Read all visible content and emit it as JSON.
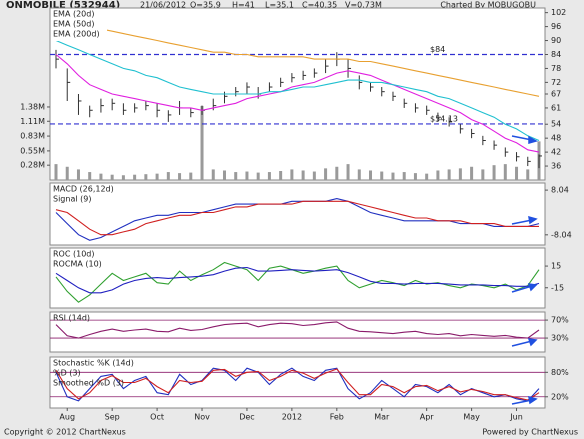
{
  "header": {
    "title": "ONMOBILE (532944)",
    "date": "21/06/2012",
    "quote": [
      "O=35.9",
      "H=41",
      "L=35.1",
      "C=40.35",
      "V=0.73M"
    ],
    "credit": "Charted By MOBUGOBU"
  },
  "footer": {
    "copyright": "Copyright © 2012 ChartNexus",
    "powered": "Powered by ChartNexus"
  },
  "chart_data": [
    {
      "type": "ohlc",
      "color": "#303030",
      "high": [
        86,
        78,
        67,
        62,
        65,
        65,
        63,
        63,
        64,
        63,
        60,
        64,
        61,
        62,
        65,
        68,
        70,
        72,
        70,
        72,
        74,
        76,
        77,
        78,
        82,
        85,
        82,
        75,
        72,
        70,
        68,
        65,
        63,
        62,
        59,
        57,
        54,
        52,
        49,
        47,
        44,
        42,
        40,
        41
      ],
      "low": [
        78,
        64,
        58,
        57,
        59,
        60,
        58,
        59,
        60,
        57,
        55,
        58,
        57,
        58,
        60,
        63,
        66,
        67,
        65,
        68,
        70,
        72,
        73,
        74,
        76,
        79,
        74,
        69,
        68,
        66,
        64,
        61,
        59,
        58,
        55,
        53,
        50,
        48,
        45,
        43,
        40,
        38,
        36,
        35.1
      ],
      "close": [
        82,
        72,
        64,
        60,
        62,
        63,
        60,
        61,
        62,
        60,
        58,
        61,
        59,
        60,
        62,
        66,
        68,
        70,
        67,
        70,
        72,
        74,
        75,
        76,
        79,
        82,
        78,
        72,
        70,
        68,
        66,
        63,
        61,
        60,
        57,
        55,
        52,
        50,
        47,
        45,
        42,
        40,
        38,
        40.35
      ],
      "volume": [
        300000,
        250000,
        200000,
        150000,
        120000,
        100000,
        90000,
        100000,
        110000,
        120000,
        150000,
        130000,
        140000,
        1400000,
        200000,
        180000,
        150000,
        160000,
        140000,
        150000,
        170000,
        200000,
        180000,
        160000,
        220000,
        250000,
        300000,
        200000,
        180000,
        160000,
        140000,
        150000,
        130000,
        120000,
        180000,
        200000,
        220000,
        250000,
        200000,
        280000,
        300000,
        250000,
        200000,
        730000
      ],
      "volume_color": "#9a9a9a",
      "ylim": [
        30,
        104
      ],
      "yticks": [
        36,
        42,
        48,
        54,
        61,
        67,
        72,
        78,
        84,
        90,
        96,
        102
      ],
      "y2lim": [
        0,
        3250000
      ],
      "y2ticks": [
        {
          "value": 280000,
          "label": "0.28M"
        },
        {
          "value": 550000,
          "label": "0.55M"
        },
        {
          "value": 830000,
          "label": "0.83M"
        },
        {
          "value": 1110000,
          "label": "1.11M"
        },
        {
          "value": 1380000,
          "label": "1.38M"
        }
      ],
      "levels": [
        {
          "value": 84,
          "label": "$84"
        },
        {
          "value": 54.13,
          "label": "$54.13"
        }
      ],
      "level_color": "#3030d0",
      "series": [
        {
          "name": "EMA (20d)",
          "color": "#e020e0",
          "values": [
            84,
            80,
            75,
            71,
            69,
            67,
            66,
            65,
            64,
            63,
            62,
            61,
            61,
            60,
            61,
            62,
            63,
            65,
            66,
            67,
            68,
            70,
            71,
            72,
            74,
            76,
            77,
            76,
            75,
            73,
            71,
            69,
            67,
            65,
            63,
            61,
            59,
            56,
            54,
            51,
            48,
            46,
            43,
            42
          ]
        },
        {
          "name": "EMA (50d)",
          "color": "#20c0d0",
          "values": [
            90,
            88,
            86,
            84,
            82,
            80,
            78,
            77,
            75,
            74,
            72,
            70,
            69,
            68,
            67,
            67,
            67,
            67,
            67,
            68,
            68,
            69,
            70,
            70,
            71,
            72,
            73,
            73,
            72,
            72,
            71,
            70,
            69,
            68,
            66,
            65,
            63,
            61,
            59,
            57,
            54,
            52,
            49,
            47
          ]
        },
        {
          "name": "EMA (200d)",
          "color": "#e8a030",
          "values": [
            97,
            97,
            96,
            96,
            95,
            94,
            93,
            92,
            91,
            90,
            89,
            88,
            87,
            86,
            85,
            85,
            84,
            84,
            83,
            83,
            83,
            83,
            83,
            82,
            82,
            82,
            82,
            81,
            81,
            80,
            79,
            78,
            77,
            76,
            75,
            74,
            73,
            72,
            71,
            70,
            69,
            68,
            67,
            66
          ]
        }
      ]
    },
    {
      "type": "line",
      "ylim": [
        -11.7,
        10.6
      ],
      "yticks": [
        -8.04,
        8.04
      ],
      "grid": false,
      "series": [
        {
          "name": "MACD (26,12d)",
          "color": "#2030c0",
          "values": [
            0,
            -4,
            -8,
            -10,
            -9,
            -7,
            -5,
            -3,
            -2,
            -1,
            -1,
            0,
            0,
            0,
            1,
            2,
            3,
            3,
            3,
            3,
            3,
            4,
            4,
            4,
            4,
            5,
            4,
            2,
            0,
            -1,
            -2,
            -3,
            -3,
            -3,
            -3,
            -3,
            -4,
            -4,
            -4,
            -5,
            -5,
            -5,
            -5,
            -4
          ]
        },
        {
          "name": "Signal (9)",
          "color": "#d02020",
          "values": [
            1,
            0,
            -3,
            -6,
            -8,
            -8,
            -7,
            -6,
            -4,
            -3,
            -2,
            -1,
            -1,
            0,
            0,
            1,
            2,
            2,
            3,
            3,
            3,
            3,
            4,
            4,
            4,
            4,
            4,
            3,
            2,
            1,
            0,
            -1,
            -2,
            -2,
            -3,
            -3,
            -3,
            -4,
            -4,
            -4,
            -5,
            -5,
            -5,
            -5
          ]
        }
      ]
    },
    {
      "type": "line",
      "ylim": [
        -43,
        40
      ],
      "yticks": [
        -15,
        15
      ],
      "grid": false,
      "series": [
        {
          "name": "ROC (10d)",
          "color": "#30a030",
          "values": [
            0,
            -20,
            -35,
            -25,
            -10,
            5,
            -5,
            0,
            5,
            -8,
            -10,
            8,
            -5,
            3,
            10,
            20,
            15,
            10,
            -5,
            12,
            15,
            10,
            5,
            8,
            12,
            15,
            -5,
            -15,
            -10,
            -5,
            -8,
            -12,
            -5,
            -10,
            -8,
            -12,
            -15,
            -10,
            -12,
            -15,
            -10,
            -18,
            -12,
            10
          ]
        },
        {
          "name": "ROCMA (10)",
          "color": "#2020c0",
          "values": [
            5,
            -5,
            -15,
            -22,
            -22,
            -18,
            -10,
            -5,
            -2,
            -1,
            -2,
            -1,
            0,
            1,
            3,
            8,
            12,
            13,
            8,
            8,
            9,
            10,
            9,
            8,
            9,
            10,
            6,
            0,
            -6,
            -9,
            -9,
            -10,
            -9,
            -9,
            -9,
            -10,
            -11,
            -11,
            -11,
            -12,
            -12,
            -13,
            -13,
            -9
          ]
        }
      ]
    },
    {
      "type": "line",
      "ylim": [
        -1,
        88
      ],
      "yticks": [
        {
          "value": 30,
          "label": "30%"
        },
        {
          "value": 70,
          "label": "70%"
        }
      ],
      "grid": true,
      "series": [
        {
          "name": "RSI (14d)",
          "color": "#8a1a6a",
          "values": [
            60,
            35,
            30,
            38,
            45,
            50,
            45,
            48,
            50,
            45,
            44,
            52,
            47,
            49,
            55,
            60,
            62,
            63,
            55,
            60,
            63,
            62,
            58,
            60,
            64,
            66,
            52,
            45,
            44,
            42,
            40,
            43,
            45,
            40,
            38,
            40,
            35,
            38,
            36,
            34,
            36,
            32,
            30,
            48
          ]
        }
      ]
    },
    {
      "type": "line",
      "title": "Stochastic %K (14d)",
      "ylim": [
        -7.5,
        117.5
      ],
      "yticks": [
        {
          "value": 20,
          "label": "20%"
        },
        {
          "value": 80,
          "label": "80%"
        }
      ],
      "grid": true,
      "categories": [
        null,
        "Aug",
        null,
        null,
        null,
        "Sep",
        null,
        null,
        null,
        "Oct",
        null,
        null,
        null,
        "Nov",
        null,
        null,
        null,
        "Dec",
        null,
        null,
        null,
        "2012",
        null,
        null,
        null,
        "Feb",
        null,
        null,
        null,
        "Mar",
        null,
        null,
        null,
        "Apr",
        null,
        null,
        null,
        "May",
        null,
        null,
        null,
        "Jun",
        null,
        null
      ],
      "series": [
        {
          "name": "%D (3)",
          "color": "#2030c0",
          "values": [
            80,
            20,
            10,
            40,
            70,
            75,
            40,
            60,
            70,
            30,
            25,
            75,
            50,
            60,
            90,
            85,
            60,
            90,
            80,
            50,
            75,
            90,
            70,
            60,
            85,
            90,
            40,
            15,
            30,
            60,
            40,
            20,
            50,
            45,
            30,
            50,
            25,
            40,
            30,
            20,
            25,
            15,
            10,
            40
          ]
        },
        {
          "name": "Smoothed %D (3)",
          "color": "#d02020",
          "values": [
            85,
            40,
            15,
            30,
            60,
            72,
            55,
            55,
            65,
            45,
            30,
            60,
            55,
            58,
            85,
            87,
            70,
            80,
            82,
            60,
            70,
            85,
            78,
            65,
            78,
            88,
            55,
            25,
            25,
            50,
            45,
            30,
            45,
            48,
            35,
            45,
            32,
            38,
            33,
            25,
            25,
            18,
            12,
            30
          ]
        }
      ]
    }
  ]
}
